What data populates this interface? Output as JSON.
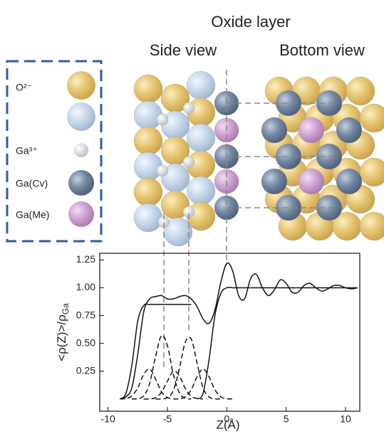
{
  "diagram": {
    "title": "Oxide layer",
    "panels": [
      "Side view",
      "Bottom view"
    ],
    "legend": [
      "O²⁻",
      "Ga³⁺",
      "Ga(Cv)",
      "Ga(Me)"
    ]
  },
  "chart_data": {
    "type": "line",
    "xlabel": "Z(Å)",
    "ylabel": "<ρ(Z)>/ρ",
    "ylabel_subscript": "Ga",
    "xlim": [
      -10.7,
      11.2
    ],
    "xticks": [
      -10,
      -5,
      0,
      5,
      10
    ],
    "ylim": [
      -0.11,
      1.31
    ],
    "yticks": [
      {
        "value": 0.25,
        "label": "0.25"
      },
      {
        "value": 0.5,
        "label": "0.50"
      },
      {
        "value": 0.75,
        "label": "0.75"
      },
      {
        "value": 1,
        "label": "1.00"
      },
      {
        "value": 1.25,
        "label": "1.25"
      }
    ],
    "grid": false,
    "x": [
      -9,
      -8.5,
      -8,
      -7.5,
      -7,
      -6.5,
      -6,
      -5.5,
      -5,
      -4.5,
      -4,
      -3.5,
      -3,
      -2.5,
      -2,
      -1.5,
      -1,
      -0.5,
      0,
      0.5,
      1,
      1.5,
      2,
      2.5,
      3,
      3.5,
      4,
      4.5,
      5,
      5.5,
      6,
      6.5,
      7,
      7.5,
      8,
      8.5,
      9,
      9.5,
      10,
      10.5,
      11
    ],
    "series": [
      {
        "color": "#111111",
        "style": "solid",
        "values": [
          0,
          0.02,
          0.1,
          0.4,
          0.78,
          0.9,
          0.92,
          0.93,
          0.9,
          0.9,
          0.92,
          0.93,
          0.9,
          0.83,
          0.72,
          0.68,
          0.8,
          1.05,
          1.22,
          1.15,
          0.93,
          0.9,
          1.08,
          1.12,
          1.0,
          0.93,
          0.98,
          1.07,
          1.04,
          0.96,
          0.96,
          1.02,
          1.04,
          1.0,
          0.97,
          0.99,
          1.02,
          1.02,
          1.0,
          0.99,
          1.0
        ]
      },
      {
        "color": "#111111",
        "style": "solid",
        "values": [
          0,
          0.05,
          0.3,
          0.7,
          0.84,
          0.85,
          0.85,
          0.85,
          0.85,
          0.85,
          0.85,
          0.85,
          0.85,
          null,
          null,
          null,
          null,
          null,
          null,
          null,
          null,
          null,
          null,
          null,
          null,
          null,
          null,
          null,
          null,
          null,
          null,
          null,
          null,
          null,
          null,
          null,
          null,
          null,
          null,
          null,
          null
        ]
      },
      {
        "color": "#111111",
        "style": "solid",
        "values": [
          null,
          null,
          null,
          null,
          null,
          null,
          null,
          null,
          null,
          null,
          null,
          null,
          null,
          0,
          0.05,
          0.35,
          0.75,
          0.95,
          1.0,
          1.0,
          1.0,
          1.0,
          1.0,
          1.0,
          1.0,
          1.0,
          1.0,
          1.0,
          1.0,
          1.0,
          1.0,
          1.0,
          1.0,
          1.0,
          1.0,
          1.0,
          1.0,
          1.0,
          1.0,
          1.0,
          1.0
        ]
      },
      {
        "color": "#111111",
        "style": "dashed",
        "values": [
          0,
          0.004,
          0.026,
          0.1,
          0.22,
          0.27,
          0.18,
          0.065,
          0.013,
          0,
          null,
          null,
          null,
          null,
          null,
          null,
          null,
          null,
          null,
          null,
          null,
          null,
          null,
          null,
          null,
          null,
          null,
          null,
          null,
          null,
          null,
          null,
          null,
          null,
          null,
          null,
          null,
          null,
          null,
          null,
          null
        ]
      },
      {
        "color": "#111111",
        "style": "dashed",
        "values": [
          null,
          null,
          0,
          0.003,
          0.028,
          0.14,
          0.38,
          0.57,
          0.48,
          0.22,
          0.057,
          0.008,
          0,
          null,
          null,
          null,
          null,
          null,
          null,
          null,
          null,
          null,
          null,
          null,
          null,
          null,
          null,
          null,
          null,
          null,
          null,
          null,
          null,
          null,
          null,
          null,
          null,
          null,
          null,
          null,
          null
        ]
      },
      {
        "color": "#111111",
        "style": "dashed",
        "values": [
          null,
          null,
          null,
          null,
          0,
          0.001,
          0.012,
          0.06,
          0.16,
          0.25,
          0.21,
          0.096,
          0.025,
          0.004,
          0,
          null,
          null,
          null,
          null,
          null,
          null,
          null,
          null,
          null,
          null,
          null,
          null,
          null,
          null,
          null,
          null,
          null,
          null,
          null,
          null,
          null,
          null,
          null,
          null,
          null,
          null
        ]
      },
      {
        "color": "#111111",
        "style": "dashed",
        "values": [
          null,
          null,
          null,
          null,
          null,
          null,
          0,
          0.001,
          0.012,
          0.077,
          0.27,
          0.51,
          0.54,
          0.32,
          0.1,
          0.019,
          0.002,
          0,
          null,
          null,
          null,
          null,
          null,
          null,
          null,
          null,
          null,
          null,
          null,
          null,
          null,
          null,
          null,
          null,
          null,
          null,
          null,
          null,
          null,
          null,
          null
        ]
      },
      {
        "color": "#111111",
        "style": "dashed",
        "values": [
          null,
          null,
          null,
          null,
          null,
          null,
          null,
          null,
          null,
          0,
          0.002,
          0.019,
          0.083,
          0.2,
          0.27,
          0.2,
          0.083,
          0.019,
          0.002,
          0,
          null,
          null,
          null,
          null,
          null,
          null,
          null,
          null,
          null,
          null,
          null,
          null,
          null,
          null,
          null,
          null,
          null,
          null,
          null,
          null,
          null
        ]
      }
    ]
  }
}
